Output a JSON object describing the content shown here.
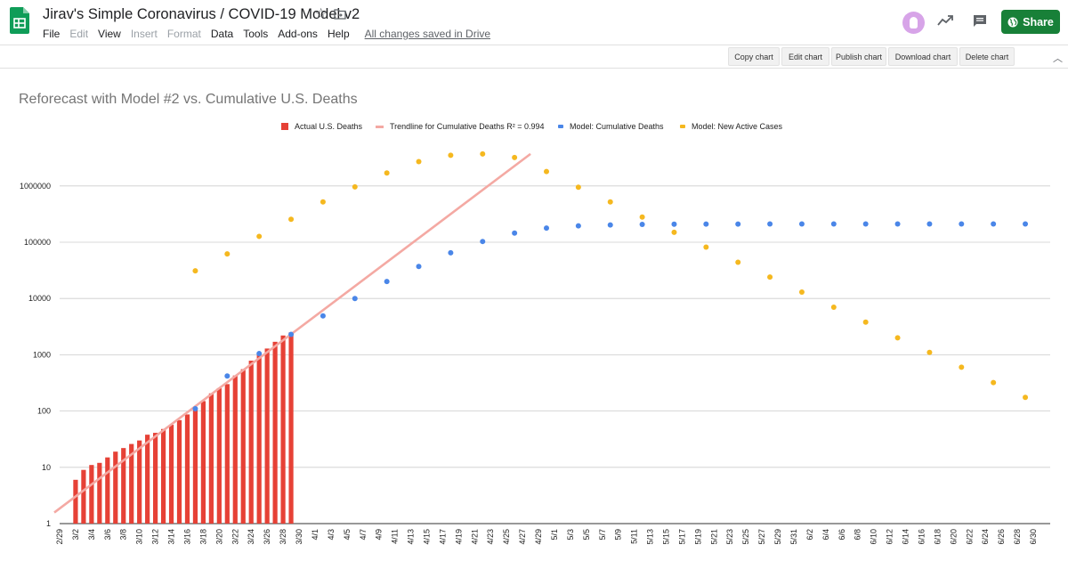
{
  "header": {
    "doc_title": "Jirav's Simple Coronavirus / COVID-19 Model v2",
    "menu": [
      {
        "label": "File",
        "enabled": true
      },
      {
        "label": "Edit",
        "enabled": false
      },
      {
        "label": "View",
        "enabled": true
      },
      {
        "label": "Insert",
        "enabled": false
      },
      {
        "label": "Format",
        "enabled": false
      },
      {
        "label": "Data",
        "enabled": true
      },
      {
        "label": "Tools",
        "enabled": true
      },
      {
        "label": "Add-ons",
        "enabled": true
      },
      {
        "label": "Help",
        "enabled": true
      }
    ],
    "save_status": "All changes saved in Drive",
    "share_label": "Share",
    "icons": [
      "sheets-logo-icon",
      "star-icon",
      "move-to-folder-icon",
      "avatar",
      "explore-icon",
      "comment-icon",
      "globe-icon",
      "chevron-up-icon"
    ]
  },
  "toolbar": {
    "copy_chart": "Copy chart",
    "edit_chart": "Edit chart",
    "publish_chart": "Publish chart",
    "download_chart": "Download chart",
    "delete_chart": "Delete chart"
  },
  "colors": {
    "share_green": "#188038",
    "bar_red": "#e64136",
    "trendline_pink": "#f4a9a3",
    "model_blue": "#4a86e8",
    "model_yellow": "#f5b81f"
  },
  "chart_data": {
    "type": "bar",
    "title": "Reforecast with Model #2 vs. Cumulative U.S. Deaths",
    "y_scale": "log",
    "ylim": [
      1,
      4000000
    ],
    "y_ticks": [
      1,
      10,
      100,
      1000,
      10000,
      100000,
      1000000
    ],
    "y_tick_labels": [
      "1",
      "10",
      "100",
      "1000",
      "10000",
      "100000",
      "1000000"
    ],
    "grid": true,
    "legend_position": "top",
    "x_ticks": [
      "2/29",
      "3/2",
      "3/4",
      "3/6",
      "3/8",
      "3/10",
      "3/12",
      "3/14",
      "3/16",
      "3/18",
      "3/20",
      "3/22",
      "3/24",
      "3/26",
      "3/28",
      "3/30",
      "4/1",
      "4/3",
      "4/5",
      "4/7",
      "4/9",
      "4/11",
      "4/13",
      "4/15",
      "4/17",
      "4/19",
      "4/21",
      "4/23",
      "4/25",
      "4/27",
      "4/29",
      "5/1",
      "5/3",
      "5/5",
      "5/7",
      "5/9",
      "5/11",
      "5/13",
      "5/15",
      "5/17",
      "5/19",
      "5/21",
      "5/23",
      "5/25",
      "5/27",
      "5/29",
      "5/31",
      "6/2",
      "6/4",
      "6/6",
      "6/8",
      "6/10",
      "6/12",
      "6/14",
      "6/16",
      "6/18",
      "6/20",
      "6/22",
      "6/24",
      "6/26",
      "6/28",
      "6/30"
    ],
    "series": [
      {
        "name": "Actual U.S. Deaths",
        "kind": "bar",
        "color": "#e64136",
        "x": [
          "3/2",
          "3/3",
          "3/4",
          "3/5",
          "3/6",
          "3/7",
          "3/8",
          "3/9",
          "3/10",
          "3/11",
          "3/12",
          "3/13",
          "3/14",
          "3/15",
          "3/16",
          "3/17",
          "3/18",
          "3/19",
          "3/20",
          "3/21",
          "3/22",
          "3/23",
          "3/24",
          "3/25",
          "3/26",
          "3/27",
          "3/28",
          "3/29"
        ],
        "values": [
          6,
          9,
          11,
          12,
          15,
          19,
          22,
          26,
          30,
          38,
          41,
          48,
          57,
          69,
          87,
          108,
          150,
          206,
          255,
          301,
          428,
          554,
          785,
          1000,
          1290,
          1700,
          2200,
          2500
        ]
      },
      {
        "name": "Trendline for Cumulative Deaths R² = 0.994",
        "kind": "line",
        "color": "#f4a9a3",
        "x": [
          "2/29",
          "4/28"
        ],
        "values": [
          1.7,
          3700000
        ]
      },
      {
        "name": "Model: Cumulative Deaths",
        "kind": "scatter",
        "color": "#4a86e8",
        "x": [
          "3/17",
          "3/21",
          "3/25",
          "3/29",
          "4/2",
          "4/6",
          "4/10",
          "4/14",
          "4/18",
          "4/22",
          "4/26",
          "4/30",
          "5/4",
          "5/8",
          "5/12",
          "5/16",
          "5/20",
          "5/24",
          "5/28",
          "6/1",
          "6/5",
          "6/9",
          "6/13",
          "6/17",
          "6/21",
          "6/25",
          "6/29"
        ],
        "values": [
          110,
          420,
          1050,
          2300,
          4900,
          10000,
          20000,
          37000,
          65000,
          103000,
          145000,
          178000,
          195000,
          203000,
          207000,
          209000,
          210000,
          210000,
          211000,
          211000,
          211000,
          211000,
          211000,
          211000,
          211000,
          211000,
          211000
        ]
      },
      {
        "name": "Model: New Active Cases",
        "kind": "scatter",
        "color": "#f5b81f",
        "x": [
          "3/17",
          "3/21",
          "3/25",
          "3/29",
          "4/2",
          "4/6",
          "4/10",
          "4/14",
          "4/18",
          "4/22",
          "4/26",
          "4/30",
          "5/4",
          "5/8",
          "5/12",
          "5/16",
          "5/20",
          "5/24",
          "5/28",
          "6/1",
          "6/5",
          "6/9",
          "6/13",
          "6/17",
          "6/21",
          "6/25",
          "6/29"
        ],
        "values": [
          31000,
          62000,
          127000,
          255000,
          520000,
          960000,
          1700000,
          2700000,
          3500000,
          3700000,
          3200000,
          1800000,
          950000,
          520000,
          280000,
          150000,
          82000,
          44000,
          24000,
          13000,
          7000,
          3800,
          2000,
          1100,
          600,
          320,
          175
        ]
      }
    ]
  }
}
